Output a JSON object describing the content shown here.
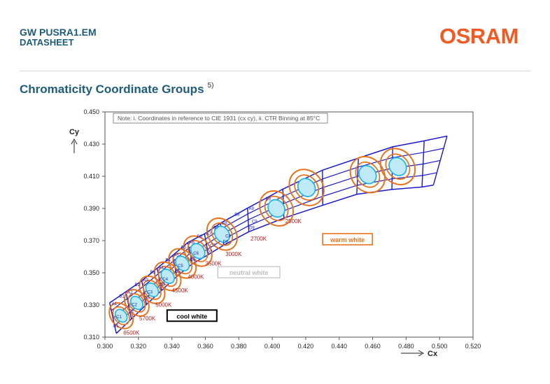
{
  "header": {
    "title": "GW PUSRA1.EM",
    "subtitle": "DATASHEET",
    "logo": "OSRAM",
    "section_title": "Chromaticity Coordinate Groups",
    "footnote_ref": "5)"
  },
  "colors": {
    "brand": "#f15a22",
    "heading": "#1d5c7a",
    "bin_outline": "#1a1acc",
    "ellipse_outer": "#e8731c",
    "ellipse_inner": "#29b7d9",
    "cct_label": "#b22222"
  },
  "chart_data": {
    "type": "scatter",
    "xlabel": "Cx",
    "ylabel": "Cy",
    "xlim": [
      0.3,
      0.52
    ],
    "ylim": [
      0.31,
      0.45
    ],
    "x_ticks": [
      "0.300",
      "0.320",
      "0.340",
      "0.360",
      "0.380",
      "0.400",
      "0.420",
      "0.440",
      "0.460",
      "0.480",
      "0.500",
      "0.520"
    ],
    "y_ticks": [
      "0.450",
      "0.430",
      "0.410",
      "0.390",
      "0.370",
      "0.350",
      "0.330",
      "0.310"
    ],
    "note": "Note: i. Coordinates in reference to CIE 1931 (cx cy), ii. CTR Binning at 85°C",
    "grid": false,
    "boundaries": [
      {
        "x0": 0.3028,
        "y0": 0.3313,
        "x1": 0.3068,
        "y1": 0.3123
      },
      {
        "x0": 0.3125,
        "y0": 0.3382,
        "x1": 0.3158,
        "y1": 0.3213
      },
      {
        "x0": 0.322,
        "y0": 0.345,
        "x1": 0.3248,
        "y1": 0.3303
      },
      {
        "x0": 0.3312,
        "y0": 0.3528,
        "x1": 0.3338,
        "y1": 0.339
      },
      {
        "x0": 0.3405,
        "y0": 0.3608,
        "x1": 0.343,
        "y1": 0.3478
      },
      {
        "x0": 0.3495,
        "y0": 0.3688,
        "x1": 0.3522,
        "y1": 0.3555
      },
      {
        "x0": 0.3595,
        "y0": 0.3742,
        "x1": 0.3618,
        "y1": 0.3613
      },
      {
        "x0": 0.369,
        "y0": 0.3808,
        "x1": 0.371,
        "y1": 0.3672
      },
      {
        "x0": 0.3852,
        "y0": 0.3902,
        "x1": 0.386,
        "y1": 0.3755
      },
      {
        "x0": 0.4063,
        "y0": 0.402,
        "x1": 0.407,
        "y1": 0.384
      },
      {
        "x0": 0.43,
        "y0": 0.4138,
        "x1": 0.4302,
        "y1": 0.392
      },
      {
        "x0": 0.4515,
        "y0": 0.4213,
        "x1": 0.4505,
        "y1": 0.3988
      },
      {
        "x0": 0.472,
        "y0": 0.4283,
        "x1": 0.4715,
        "y1": 0.4018
      },
      {
        "x0": 0.4908,
        "y0": 0.432,
        "x1": 0.4895,
        "y1": 0.4033
      },
      {
        "x0": 0.5045,
        "y0": 0.435,
        "x1": 0.4963,
        "y1": 0.4045
      }
    ],
    "midlines": [
      [
        0.3048,
        0.3218,
        0.3142,
        0.3297,
        0.3234,
        0.3376,
        0.3325,
        0.3459,
        0.3418,
        0.3543,
        0.3509,
        0.3621,
        0.3607,
        0.3677,
        0.37,
        0.374,
        0.3856,
        0.3829,
        0.4067,
        0.393,
        0.4301,
        0.4029,
        0.451,
        0.41,
        0.4718,
        0.415,
        0.4902,
        0.4176,
        0.5004,
        0.4198
      ],
      [
        0.3038,
        0.3266,
        0.3134,
        0.334,
        0.3227,
        0.3413,
        0.3319,
        0.3494,
        0.3412,
        0.3576,
        0.3502,
        0.3655,
        0.3601,
        0.371,
        0.3695,
        0.3774,
        0.3854,
        0.3866,
        0.4065,
        0.3975,
        0.43,
        0.4083,
        0.4512,
        0.4157,
        0.4719,
        0.4216,
        0.4905,
        0.4248,
        0.5025,
        0.4274
      ],
      [
        0.3058,
        0.3171,
        0.315,
        0.3255,
        0.3241,
        0.334,
        0.3332,
        0.3425,
        0.3424,
        0.3511,
        0.3515,
        0.3588,
        0.3612,
        0.3645,
        0.3705,
        0.3706,
        0.3858,
        0.3792,
        0.4068,
        0.3885,
        0.4301,
        0.3975,
        0.4508,
        0.4044,
        0.4716,
        0.4084,
        0.4899,
        0.4105,
        0.4984,
        0.4122
      ]
    ],
    "groups": [
      {
        "cx": 0.3097,
        "cy": 0.3233,
        "rx": 0.004,
        "ry": 0.007,
        "inner": "1"
      },
      {
        "cx": 0.319,
        "cy": 0.3313,
        "rx": 0.0041,
        "ry": 0.0072,
        "inner": "2"
      },
      {
        "cx": 0.3282,
        "cy": 0.3394,
        "rx": 0.0042,
        "ry": 0.0075,
        "inner": "3"
      },
      {
        "cx": 0.3375,
        "cy": 0.3478,
        "rx": 0.0044,
        "ry": 0.0078,
        "inner": "4"
      },
      {
        "cx": 0.3463,
        "cy": 0.3558,
        "rx": 0.0046,
        "ry": 0.008,
        "inner": "5"
      },
      {
        "cx": 0.3555,
        "cy": 0.3635,
        "rx": 0.0048,
        "ry": 0.0082,
        "inner": "6"
      },
      {
        "cx": 0.37,
        "cy": 0.374,
        "rx": 0.0052,
        "ry": 0.0086,
        "inner": "7"
      },
      {
        "cx": 0.4025,
        "cy": 0.39,
        "rx": 0.006,
        "ry": 0.0092,
        "inner": "8"
      },
      {
        "cx": 0.4205,
        "cy": 0.403,
        "rx": 0.0062,
        "ry": 0.0095,
        "inner": "9"
      },
      {
        "cx": 0.457,
        "cy": 0.411,
        "rx": 0.0062,
        "ry": 0.0095,
        "inner": "10"
      },
      {
        "cx": 0.475,
        "cy": 0.416,
        "rx": 0.0062,
        "ry": 0.0095,
        "inner": "11"
      }
    ],
    "cct_labels": [
      {
        "text": "6500K",
        "x": 0.311,
        "y": 0.3115
      },
      {
        "text": "5700K",
        "x": 0.3205,
        "y": 0.3205
      },
      {
        "text": "5000K",
        "x": 0.3302,
        "y": 0.329
      },
      {
        "text": "4500K",
        "x": 0.34,
        "y": 0.3378
      },
      {
        "text": "4000K",
        "x": 0.3495,
        "y": 0.3463
      },
      {
        "text": "3500K",
        "x": 0.36,
        "y": 0.3545
      },
      {
        "text": "3000K",
        "x": 0.372,
        "y": 0.3605
      },
      {
        "text": "2700K",
        "x": 0.387,
        "y": 0.37
      },
      {
        "text": "2500K",
        "x": 0.4078,
        "y": 0.3808
      }
    ],
    "bin_labels": [
      {
        "text": "A1",
        "x": 0.304,
        "y": 0.33
      },
      {
        "text": "B1",
        "x": 0.3085,
        "y": 0.3345
      },
      {
        "text": "C1",
        "x": 0.3068,
        "y": 0.3218
      },
      {
        "text": "D1",
        "x": 0.305,
        "y": 0.316
      },
      {
        "text": "A2",
        "x": 0.3135,
        "y": 0.337
      },
      {
        "text": "B2",
        "x": 0.3178,
        "y": 0.3418
      },
      {
        "text": "C2",
        "x": 0.316,
        "y": 0.3293
      },
      {
        "text": "D2",
        "x": 0.3142,
        "y": 0.3255
      },
      {
        "text": "A3",
        "x": 0.3228,
        "y": 0.3445
      },
      {
        "text": "B3",
        "x": 0.327,
        "y": 0.3495
      },
      {
        "text": "C3",
        "x": 0.3252,
        "y": 0.3372
      },
      {
        "text": "D3",
        "x": 0.3235,
        "y": 0.3338
      },
      {
        "text": "A4",
        "x": 0.332,
        "y": 0.3524
      },
      {
        "text": "B4",
        "x": 0.3362,
        "y": 0.3572
      },
      {
        "text": "C4",
        "x": 0.3344,
        "y": 0.3452
      },
      {
        "text": "D4",
        "x": 0.3327,
        "y": 0.342
      },
      {
        "text": "A5",
        "x": 0.3412,
        "y": 0.3602
      },
      {
        "text": "B5",
        "x": 0.3455,
        "y": 0.365
      },
      {
        "text": "C5",
        "x": 0.3435,
        "y": 0.3535
      },
      {
        "text": "D5",
        "x": 0.3418,
        "y": 0.35
      },
      {
        "text": "A6",
        "x": 0.3504,
        "y": 0.368
      },
      {
        "text": "B6",
        "x": 0.355,
        "y": 0.3718
      },
      {
        "text": "C6",
        "x": 0.3528,
        "y": 0.3613
      },
      {
        "text": "D6",
        "x": 0.351,
        "y": 0.3575
      },
      {
        "text": "A7",
        "x": 0.3605,
        "y": 0.3735
      },
      {
        "text": "B7",
        "x": 0.365,
        "y": 0.3772
      },
      {
        "text": "C7",
        "x": 0.3628,
        "y": 0.366
      },
      {
        "text": "D7",
        "x": 0.361,
        "y": 0.3625
      },
      {
        "text": "A8",
        "x": 0.37,
        "y": 0.38
      },
      {
        "text": "B8",
        "x": 0.3775,
        "y": 0.3855
      },
      {
        "text": "C8",
        "x": 0.372,
        "y": 0.372
      },
      {
        "text": "D8",
        "x": 0.3705,
        "y": 0.3685
      },
      {
        "text": "A9",
        "x": 0.386,
        "y": 0.3892
      },
      {
        "text": "B9",
        "x": 0.396,
        "y": 0.395
      },
      {
        "text": "C9",
        "x": 0.3878,
        "y": 0.381
      },
      {
        "text": "D9",
        "x": 0.3862,
        "y": 0.3772
      }
    ],
    "annotations": [
      {
        "text": "cool white",
        "x": 0.352,
        "y": 0.3225,
        "style": "black"
      },
      {
        "text": "neutral white",
        "x": 0.386,
        "y": 0.3495,
        "style": "gray"
      },
      {
        "text": "warm white",
        "x": 0.445,
        "y": 0.37,
        "style": "orange"
      }
    ]
  }
}
